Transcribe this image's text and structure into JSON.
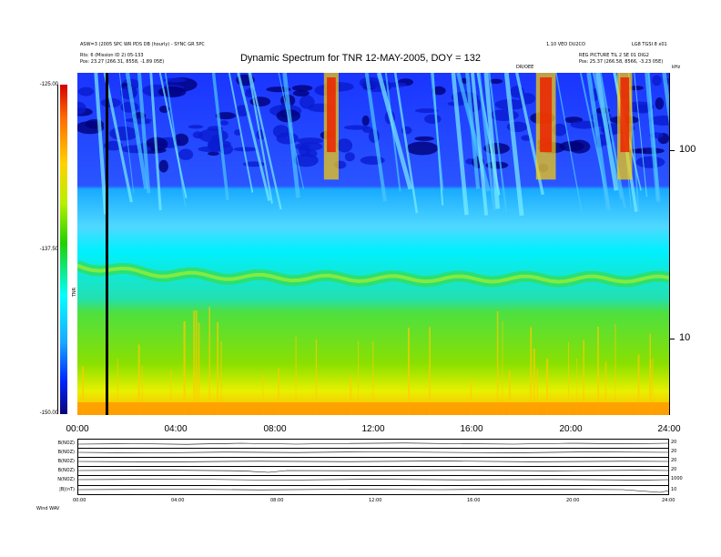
{
  "header": {
    "left_line1": "ASW=3 (2005 SPC WR PDS DB (hourly) - SYNC GR 5PC",
    "left_line2": "Rts: 6 (Mission ID 2) 05-133",
    "left_line3": "Pos:    23.27 (266.31, 8558, -1.89 05E)",
    "right_line1": "1.10 VEO DU2CO",
    "right_line2": "LG8 TGSI 8 x01",
    "right_line3": "REG PICTURE TIL 2 SE 01 DIG2",
    "right_line4": "Pos:    25.37 (266.58, 8566, -3.23 05E)",
    "center_small": "DR/OEE",
    "unit_right": "kHz",
    "cbar_label": "TNR"
  },
  "chart_data": {
    "type": "heatmap",
    "title": "Dynamic Spectrum for TNR 12-MAY-2005, DOY = 132",
    "x_ticks": [
      "00:00",
      "04:00",
      "08:00",
      "12:00",
      "16:00",
      "20:00",
      "24:00"
    ],
    "x_range_hours": [
      0,
      24
    ],
    "y_ticks_right": [
      "100",
      "10"
    ],
    "y_scale": "log",
    "y_range_khz": [
      4,
      230
    ],
    "colorbar_ticks": [
      "-125.00",
      "-137.50",
      "-150.00"
    ],
    "colorbar_range": [
      -150,
      -125
    ],
    "colorbar_colors": [
      "#d40000",
      "#ff6a00",
      "#ffd200",
      "#b6f000",
      "#22d000",
      "#00ffff",
      "#19aaff",
      "#0026ff",
      "#0a0478"
    ],
    "black_gap_hour": 1.2,
    "plasma_line_khz": 20,
    "strong_emission_bursts_hours": [
      [
        10,
        10.6
      ],
      [
        18.6,
        19.4
      ],
      [
        21.9,
        22.5
      ]
    ],
    "panels": [
      {
        "name": "B(NOZ)",
        "right_ticks": [
          "20",
          "0"
        ]
      },
      {
        "name": "B(NOZ)",
        "right_ticks": [
          "20",
          "0"
        ]
      },
      {
        "name": "B(NOZ)",
        "right_ticks": [
          "20",
          "0"
        ]
      },
      {
        "name": "B(NOZ)",
        "right_ticks": [
          "20",
          "0"
        ]
      },
      {
        "name": "N(NOZ)",
        "right_ticks": [
          "1000",
          "100"
        ]
      },
      {
        "name": "|B|(nT)",
        "right_ticks": [
          "10",
          "0"
        ]
      }
    ],
    "bottom_ticks": [
      "00:00",
      "04:00",
      "08:00",
      "12:00",
      "16:00",
      "20:00",
      "24:00"
    ]
  },
  "footer": {
    "label": "Wind    WAV"
  }
}
